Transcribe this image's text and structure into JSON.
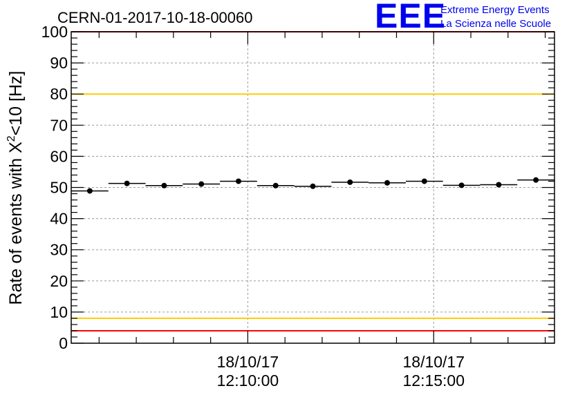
{
  "chart_data": {
    "type": "scatter",
    "title": "CERN-01-2017-10-18-00060",
    "logo": {
      "mark": "EEE",
      "line1": "Extreme Energy Events",
      "line2": "La Scienza nelle Scuole"
    },
    "ylabel_main": "Rate of events with X",
    "ylabel_sup": "2",
    "ylabel_tail": "<10 [Hz]",
    "ylim": [
      0,
      100
    ],
    "y_ticks": [
      "0",
      "10",
      "20",
      "30",
      "40",
      "50",
      "60",
      "70",
      "80",
      "90",
      "100"
    ],
    "xlim_time": [
      "12:05:15",
      "12:18:15"
    ],
    "x_major_ticks": [
      {
        "time": "12:10:00",
        "date_label": "18/10/17",
        "time_label": "12:10:00"
      },
      {
        "time": "12:15:00",
        "date_label": "18/10/17",
        "time_label": "12:15:00"
      }
    ],
    "bin_width_s": 60,
    "x": [
      "12:05:45",
      "12:06:45",
      "12:07:45",
      "12:08:45",
      "12:09:45",
      "12:10:45",
      "12:11:45",
      "12:12:45",
      "12:13:45",
      "12:14:45",
      "12:15:45",
      "12:16:45",
      "12:17:45"
    ],
    "values": [
      48.9,
      51.3,
      50.6,
      51.1,
      52.0,
      50.6,
      50.4,
      51.7,
      51.5,
      52.0,
      50.7,
      50.9,
      52.4
    ],
    "reference_lines": [
      {
        "value": 100,
        "color": "#ff0000"
      },
      {
        "value": 80,
        "color": "#ffcc00"
      },
      {
        "value": 8,
        "color": "#ffcc00"
      },
      {
        "value": 4,
        "color": "#ff0000"
      }
    ],
    "grid": true,
    "marker_color": "#000000"
  }
}
